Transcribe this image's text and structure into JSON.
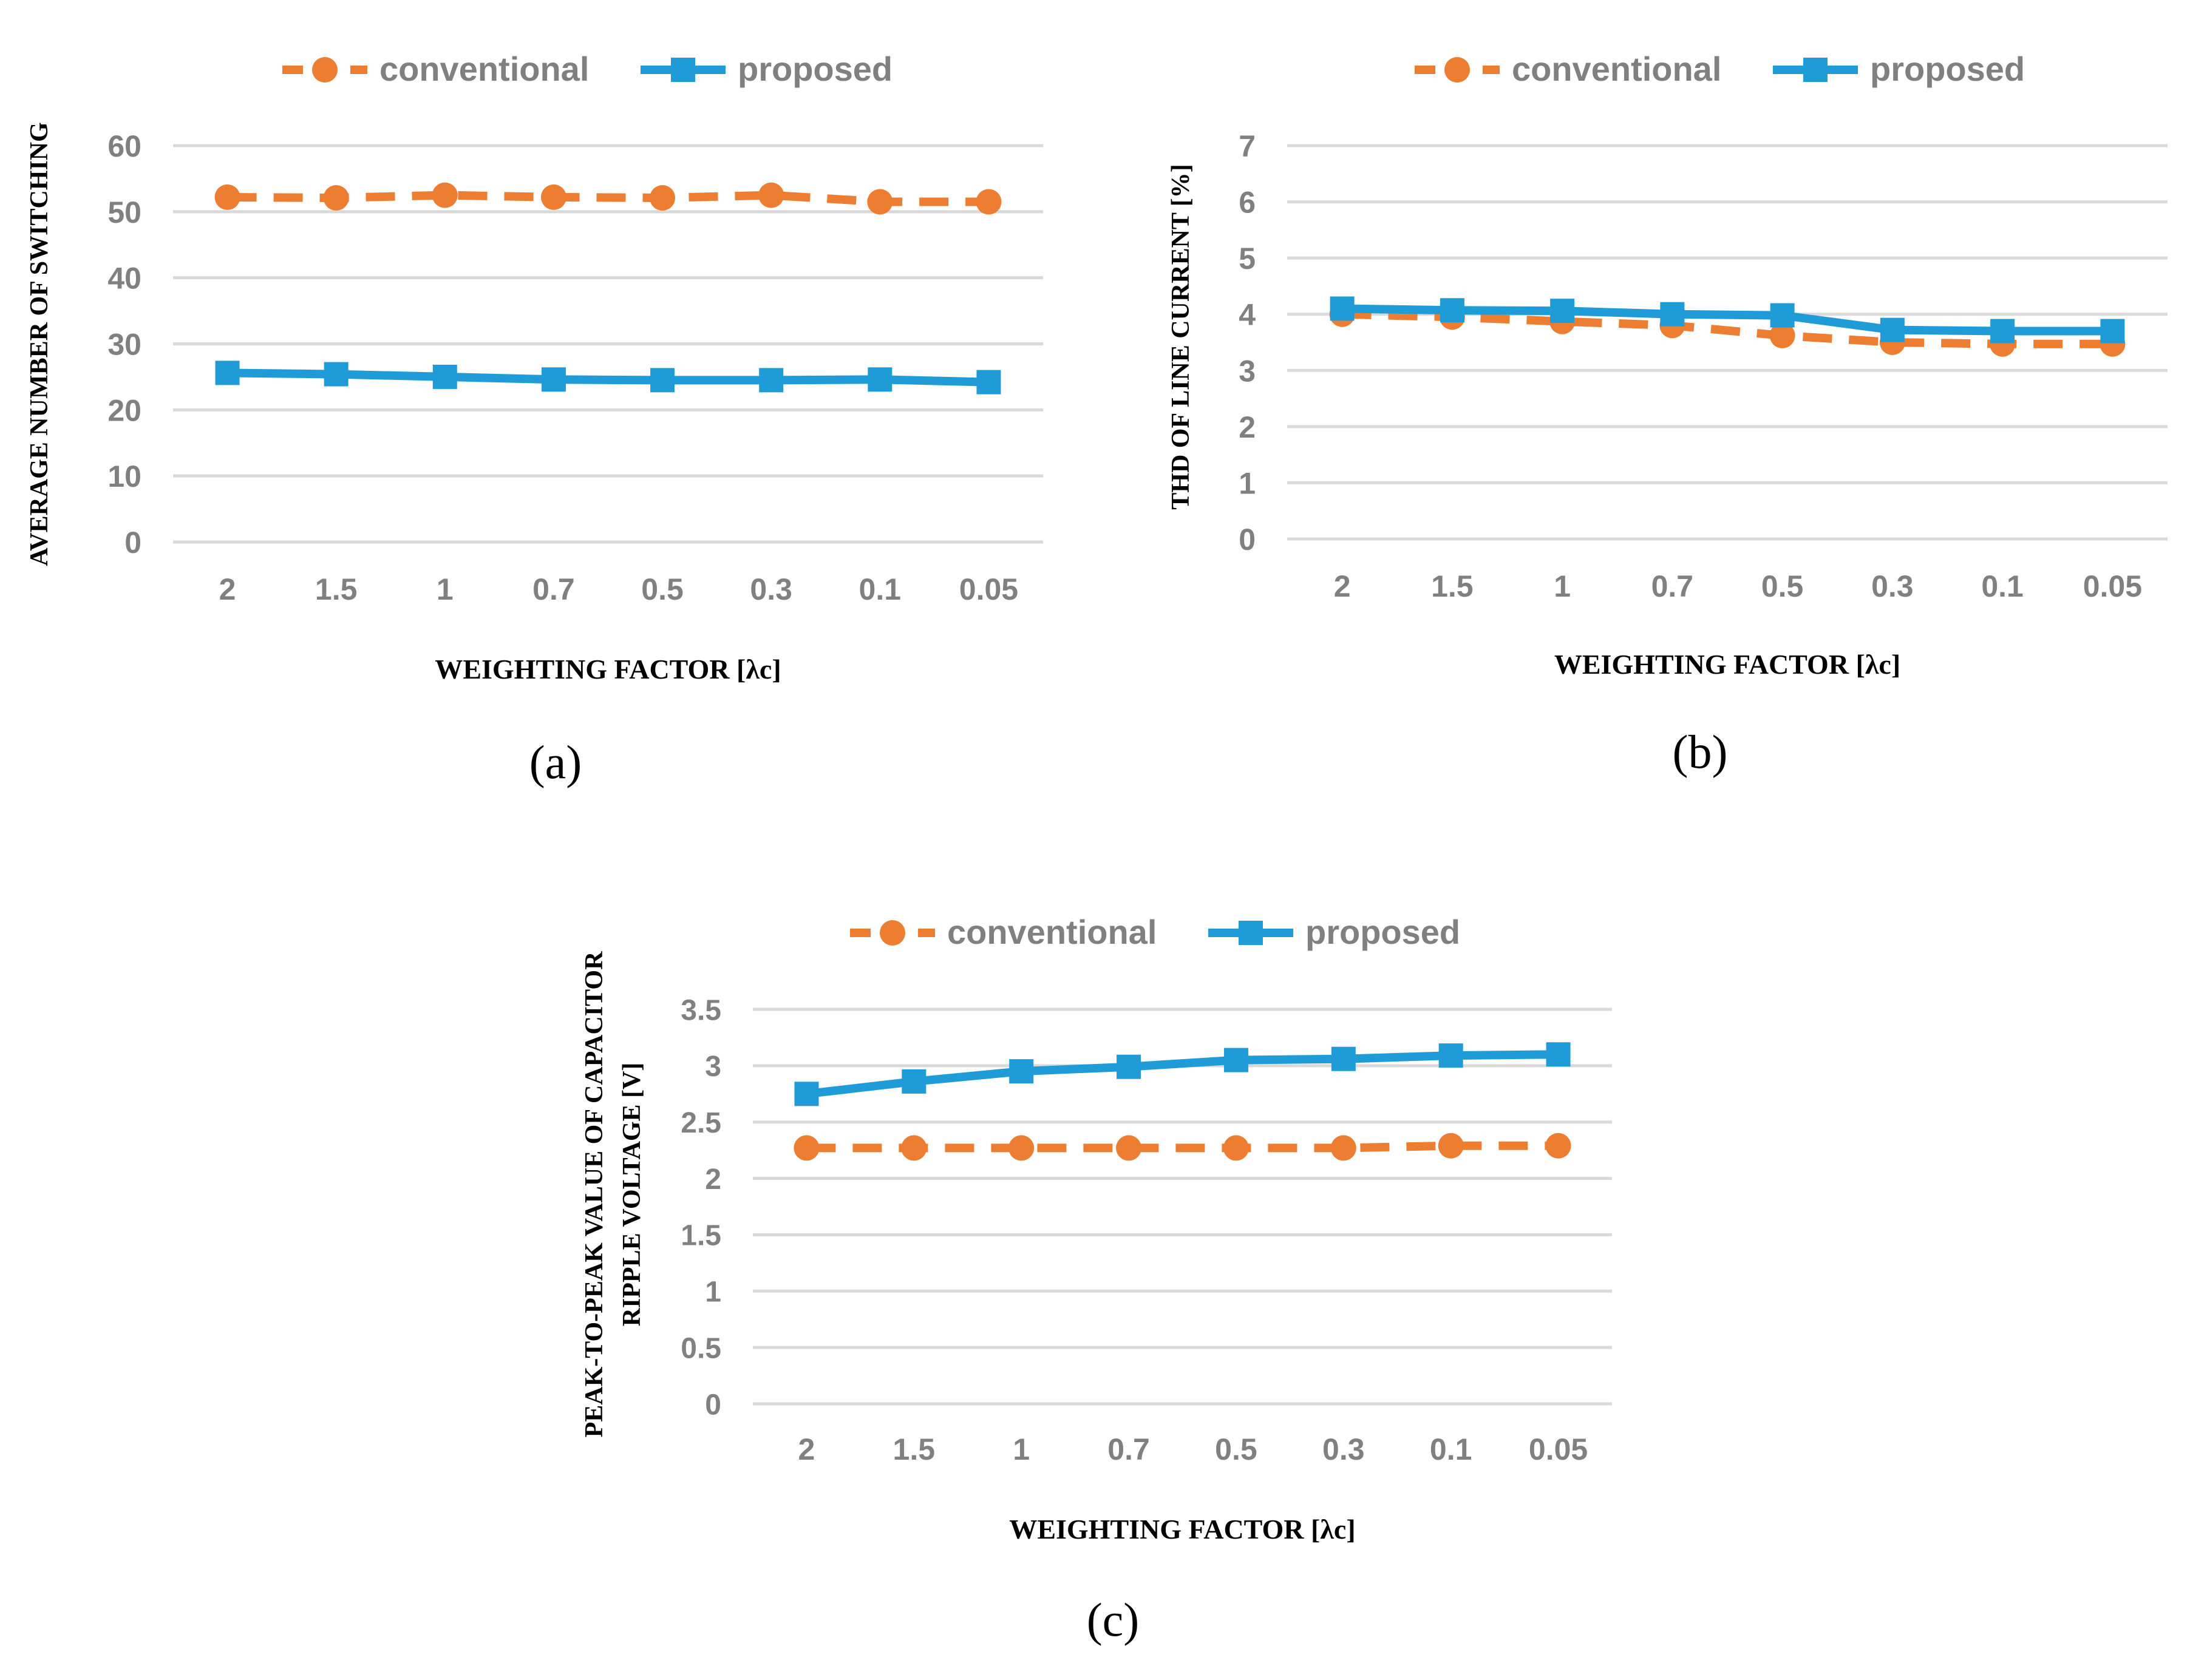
{
  "chart_data": [
    {
      "type": "line",
      "panel_label": "(a)",
      "categories": [
        "2",
        "1.5",
        "1",
        "0.7",
        "0.5",
        "0.3",
        "0.1",
        "0.05"
      ],
      "series": [
        {
          "name": "conventional",
          "values": [
            52.2,
            52.1,
            52.5,
            52.2,
            52.1,
            52.5,
            51.5,
            51.5
          ],
          "color": "#ED7D31",
          "style": "dashed",
          "marker": "circle"
        },
        {
          "name": "proposed",
          "values": [
            25.6,
            25.4,
            25.0,
            24.6,
            24.5,
            24.5,
            24.6,
            24.2
          ],
          "color": "#1F9CD8",
          "style": "solid",
          "marker": "square"
        }
      ],
      "xlabel": "WEIGHTING FACTOR [λc]",
      "ylabel": "AVERAGE NUMBER OF SWITCHING",
      "ylim": [
        0,
        60
      ],
      "yticks": [
        "0",
        "10",
        "20",
        "30",
        "40",
        "50",
        "60"
      ],
      "legend": "top-center",
      "grid": true
    },
    {
      "type": "line",
      "panel_label": "(b)",
      "categories": [
        "2",
        "1.5",
        "1",
        "0.7",
        "0.5",
        "0.3",
        "0.1",
        "0.05"
      ],
      "series": [
        {
          "name": "conventional",
          "values": [
            4.0,
            3.95,
            3.87,
            3.8,
            3.62,
            3.5,
            3.47,
            3.47
          ],
          "color": "#ED7D31",
          "style": "dashed",
          "marker": "circle"
        },
        {
          "name": "proposed",
          "values": [
            4.1,
            4.07,
            4.06,
            4.0,
            3.98,
            3.72,
            3.7,
            3.7
          ],
          "color": "#1F9CD8",
          "style": "solid",
          "marker": "square"
        }
      ],
      "xlabel": "WEIGHTING FACTOR [λc]",
      "ylabel": "THD OF LINE CURRENT [%]",
      "ylim": [
        0,
        7
      ],
      "yticks": [
        "0",
        "1",
        "2",
        "3",
        "4",
        "5",
        "6",
        "7"
      ],
      "legend": "top-center",
      "grid": true
    },
    {
      "type": "line",
      "panel_label": "(c)",
      "categories": [
        "2",
        "1.5",
        "1",
        "0.7",
        "0.5",
        "0.3",
        "0.1",
        "0.05"
      ],
      "series": [
        {
          "name": "conventional",
          "values": [
            2.27,
            2.27,
            2.27,
            2.27,
            2.27,
            2.27,
            2.29,
            2.29
          ],
          "color": "#ED7D31",
          "style": "dashed",
          "marker": "circle"
        },
        {
          "name": "proposed",
          "values": [
            2.75,
            2.86,
            2.95,
            2.99,
            3.05,
            3.06,
            3.09,
            3.1
          ],
          "color": "#1F9CD8",
          "style": "solid",
          "marker": "square"
        }
      ],
      "xlabel": "WEIGHTING FACTOR [λc]",
      "ylabel_lines": [
        "PEAK-TO-PEAK VALUE OF CAPACITOR",
        "RIPPLE VOLTAGE [V]"
      ],
      "ylim": [
        0,
        3.5
      ],
      "yticks": [
        "0",
        "0.5",
        "1",
        "1.5",
        "2",
        "2.5",
        "3",
        "3.5"
      ],
      "legend": "top-center",
      "grid": true
    }
  ]
}
